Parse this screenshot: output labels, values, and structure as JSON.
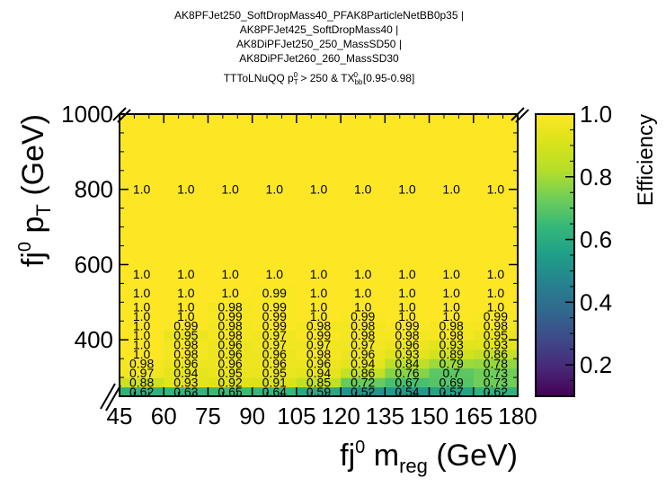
{
  "chart_data": {
    "type": "heatmap",
    "title_lines": [
      "AK8PFJet250_SoftDropMass40_PFAK8ParticleNetBB0p35 |",
      "AK8PFJet425_SoftDropMass40 |",
      "AK8DiPFJet250_250_MassSD50 |",
      "AK8DiPFJet260_260_MassSD30"
    ],
    "subtitle": "TTToLNuQQ p_T^0 > 250 & TX_bb^0[0.95-0.98]",
    "subtitle_parts": {
      "main": "TTToLNuQQ p",
      "sub1": "T",
      "sup1": "0",
      "mid": " > 250 & TX",
      "sub2": "bb",
      "sup2": "0",
      "tail": "[0.95-0.98]"
    },
    "xlabel": "fj0 mreg (GeV)",
    "ylabel": "fj0 pT (GeV)",
    "x_axis_label_parts": {
      "base": "fj",
      "sup": "0",
      "mid": " m",
      "sub": "reg",
      "tail": " (GeV)"
    },
    "y_axis_label_parts": {
      "base": "fj",
      "sup": "0",
      "mid": " p",
      "sub": "T",
      "tail": " (GeV)"
    },
    "colorbar_label": "Efficiency",
    "x_ticks": [
      "45",
      "60",
      "75",
      "90",
      "105",
      "120",
      "135",
      "150",
      "165",
      "180"
    ],
    "y_ticks": [
      "400",
      "600",
      "800",
      "1000"
    ],
    "colorbar_ticks": [
      "0.2",
      "0.4",
      "0.6",
      "0.8",
      "1.0"
    ],
    "xlim": [
      45,
      180
    ],
    "ylim": [
      250,
      1000
    ],
    "zlim": [
      0.1,
      1.0
    ],
    "colormap": "viridis",
    "x_bin_edges": [
      45,
      60,
      75,
      90,
      105,
      120,
      135,
      150,
      165,
      180
    ],
    "y_bin_edges": [
      250,
      275,
      300,
      325,
      350,
      375,
      400,
      425,
      450,
      475,
      500,
      550,
      600,
      1000
    ],
    "values": [
      [
        0.62,
        0.63,
        0.65,
        0.64,
        0.59,
        0.52,
        0.54,
        0.57,
        0.62
      ],
      [
        0.88,
        0.93,
        0.92,
        0.91,
        0.85,
        0.72,
        0.67,
        0.69,
        0.73
      ],
      [
        0.97,
        0.94,
        0.95,
        0.95,
        0.94,
        0.86,
        0.76,
        0.7,
        0.73
      ],
      [
        0.98,
        0.96,
        0.96,
        0.96,
        0.96,
        0.94,
        0.84,
        0.79,
        0.78
      ],
      [
        1.0,
        0.98,
        0.96,
        0.96,
        0.98,
        0.96,
        0.93,
        0.89,
        0.86
      ],
      [
        1.0,
        0.98,
        0.96,
        0.97,
        0.97,
        0.97,
        0.96,
        0.93,
        0.93
      ],
      [
        1.0,
        0.95,
        0.98,
        0.97,
        0.99,
        0.98,
        0.98,
        0.98,
        0.95
      ],
      [
        1.0,
        0.99,
        0.98,
        0.99,
        0.98,
        0.98,
        0.99,
        0.98,
        0.98
      ],
      [
        1.0,
        1.0,
        0.99,
        0.99,
        1.0,
        0.99,
        1.0,
        1.0,
        0.99
      ],
      [
        1.0,
        1.0,
        0.98,
        0.99,
        1.0,
        1.0,
        1.0,
        1.0,
        1.0
      ],
      [
        1.0,
        1.0,
        1.0,
        0.99,
        1.0,
        1.0,
        1.0,
        1.0,
        1.0
      ],
      [
        1.0,
        1.0,
        1.0,
        1.0,
        1.0,
        1.0,
        1.0,
        1.0,
        1.0
      ],
      [
        1.0,
        1.0,
        1.0,
        1.0,
        1.0,
        1.0,
        1.0,
        1.0,
        1.0
      ]
    ],
    "value_labels": [
      [
        "0.62",
        "0.63",
        "0.65",
        "0.64",
        "0.59",
        "0.52",
        "0.54",
        "0.57",
        "0.62"
      ],
      [
        "0.88",
        "0.93",
        "0.92",
        "0.91",
        "0.85",
        "0.72",
        "0.67",
        "0.69",
        "0.73"
      ],
      [
        "0.97",
        "0.94",
        "0.95",
        "0.95",
        "0.94",
        "0.86",
        "0.76",
        "0.7",
        "0.73"
      ],
      [
        "0.98",
        "0.96",
        "0.96",
        "0.96",
        "0.96",
        "0.94",
        "0.84",
        "0.79",
        "0.78"
      ],
      [
        "1.0",
        "0.98",
        "0.96",
        "0.96",
        "0.98",
        "0.96",
        "0.93",
        "0.89",
        "0.86"
      ],
      [
        "1.0",
        "0.98",
        "0.96",
        "0.97",
        "0.97",
        "0.97",
        "0.96",
        "0.93",
        "0.93"
      ],
      [
        "1.0",
        "0.95",
        "0.98",
        "0.97",
        "0.99",
        "0.98",
        "0.98",
        "0.98",
        "0.95"
      ],
      [
        "1.0",
        "0.99",
        "0.98",
        "0.99",
        "0.98",
        "0.98",
        "0.99",
        "0.98",
        "0.98"
      ],
      [
        "1.0",
        "1.0",
        "0.99",
        "0.99",
        "1.0",
        "0.99",
        "1.0",
        "1.0",
        "0.99"
      ],
      [
        "1.0",
        "1.0",
        "0.98",
        "0.99",
        "1.0",
        "1.0",
        "1.0",
        "1.0",
        "1.0"
      ],
      [
        "1.0",
        "1.0",
        "1.0",
        "0.99",
        "1.0",
        "1.0",
        "1.0",
        "1.0",
        "1.0"
      ],
      [
        "1.0",
        "1.0",
        "1.0",
        "1.0",
        "1.0",
        "1.0",
        "1.0",
        "1.0",
        "1.0"
      ],
      [
        "1.0",
        "1.0",
        "1.0",
        "1.0",
        "1.0",
        "1.0",
        "1.0",
        "1.0",
        "1.0"
      ]
    ],
    "grid": false,
    "legend": "none"
  }
}
